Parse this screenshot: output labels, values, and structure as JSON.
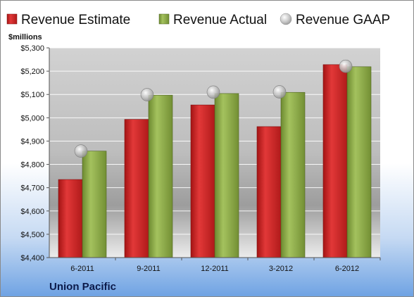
{
  "chart_data": {
    "type": "bar",
    "unit_label": "$millions",
    "company": "Union Pacific",
    "categories": [
      "6-2011",
      "9-2011",
      "12-2011",
      "3-2012",
      "6-2012"
    ],
    "series": [
      {
        "name": "Revenue Estimate",
        "kind": "bar",
        "color": "#d42a2a",
        "values": [
          4735,
          4993,
          5055,
          4962,
          5228
        ]
      },
      {
        "name": "Revenue Actual",
        "kind": "bar",
        "color": "#8faa4a",
        "values": [
          4857,
          5097,
          5104,
          5109,
          5219
        ]
      },
      {
        "name": "Revenue GAAP",
        "kind": "marker",
        "color": "#c8c8c8",
        "values": [
          4857,
          5099,
          5110,
          5111,
          5221
        ]
      }
    ],
    "ylim": [
      4400,
      5300
    ],
    "yticks": [
      "$4,400",
      "$4,500",
      "$4,600",
      "$4,700",
      "$4,800",
      "$4,900",
      "$5,000",
      "$5,100",
      "$5,200",
      "$5,300"
    ],
    "ytick_values": [
      4400,
      4500,
      4600,
      4700,
      4800,
      4900,
      5000,
      5100,
      5200,
      5300
    ],
    "grid": true,
    "legend_position": "top"
  }
}
